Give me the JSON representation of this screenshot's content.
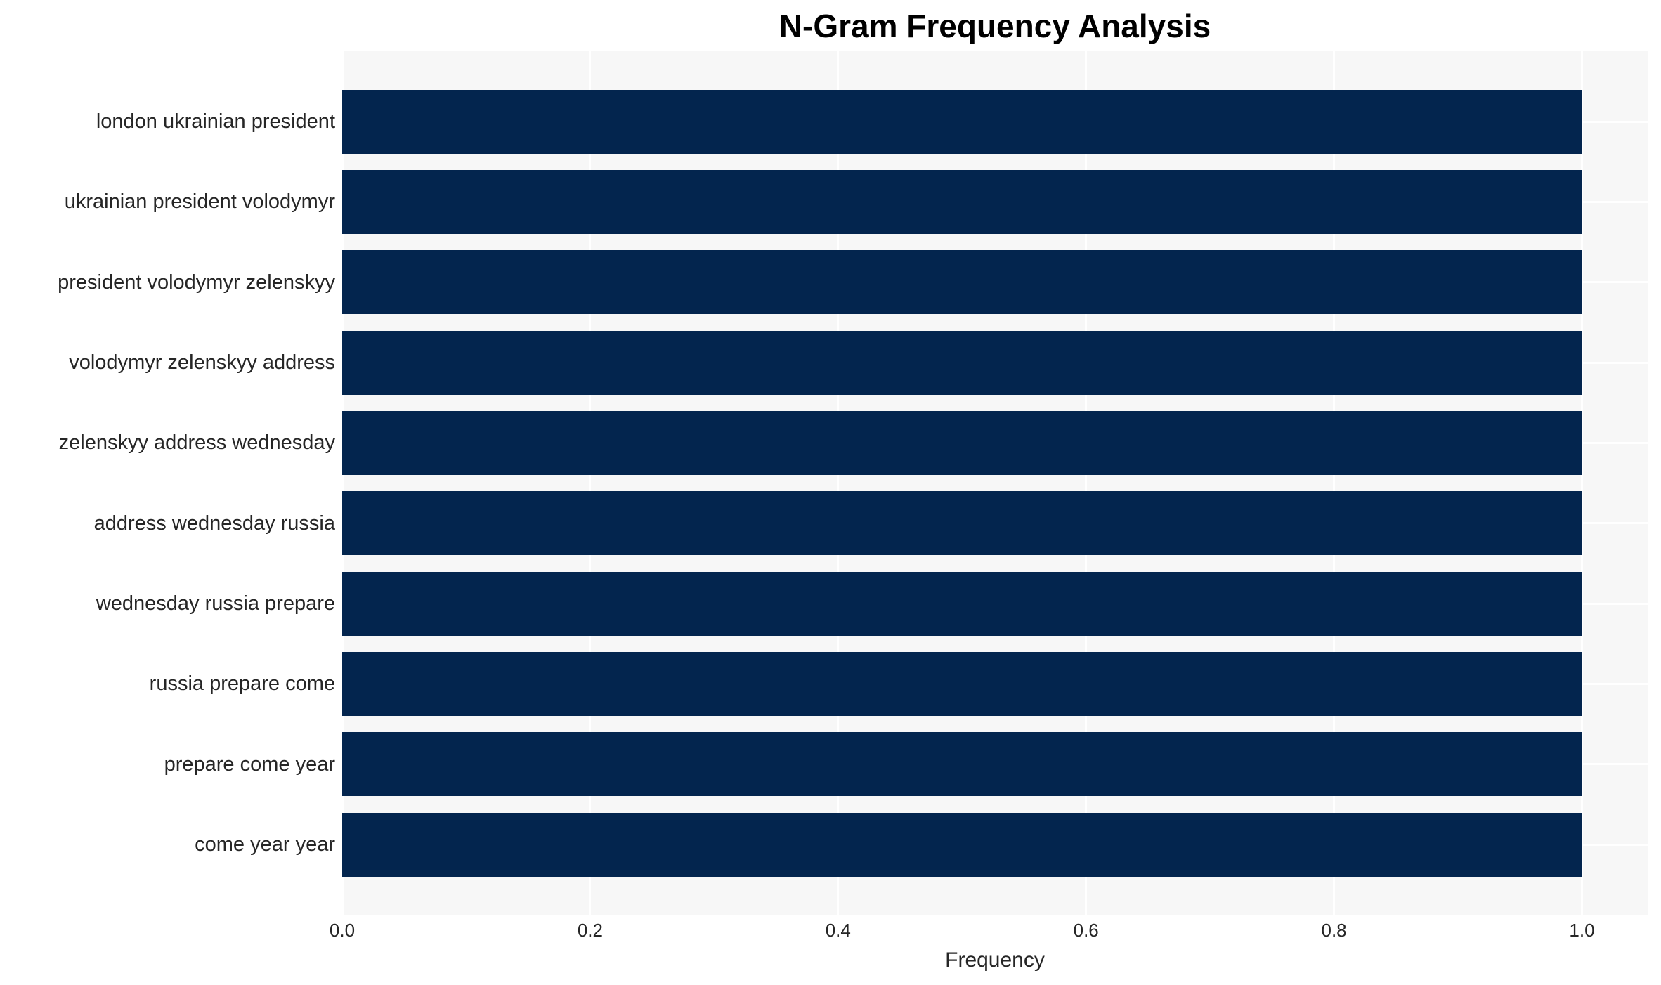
{
  "chart_data": {
    "type": "bar",
    "orientation": "horizontal",
    "title": "N-Gram Frequency Analysis",
    "xlabel": "Frequency",
    "ylabel": "",
    "categories": [
      "london ukrainian president",
      "ukrainian president volodymyr",
      "president volodymyr zelenskyy",
      "volodymyr zelenskyy address",
      "zelenskyy address wednesday",
      "address wednesday russia",
      "wednesday russia prepare",
      "russia prepare come",
      "prepare come year",
      "come year year"
    ],
    "values": [
      1.0,
      1.0,
      1.0,
      1.0,
      1.0,
      1.0,
      1.0,
      1.0,
      1.0,
      1.0
    ],
    "xticks": [
      {
        "label": "0.0",
        "value": 0.0
      },
      {
        "label": "0.2",
        "value": 0.2
      },
      {
        "label": "0.4",
        "value": 0.4
      },
      {
        "label": "0.6",
        "value": 0.6
      },
      {
        "label": "0.8",
        "value": 0.8
      },
      {
        "label": "1.0",
        "value": 1.0
      }
    ],
    "xlim": [
      0,
      1.053
    ],
    "grid": true,
    "grid_orientation": "both",
    "legend": false,
    "colors": {
      "bar": "#03254e",
      "plot_bg": "#f7f7f7",
      "grid_line": "#ffffff",
      "tick_text": "#262626",
      "title_text": "#000000"
    }
  }
}
